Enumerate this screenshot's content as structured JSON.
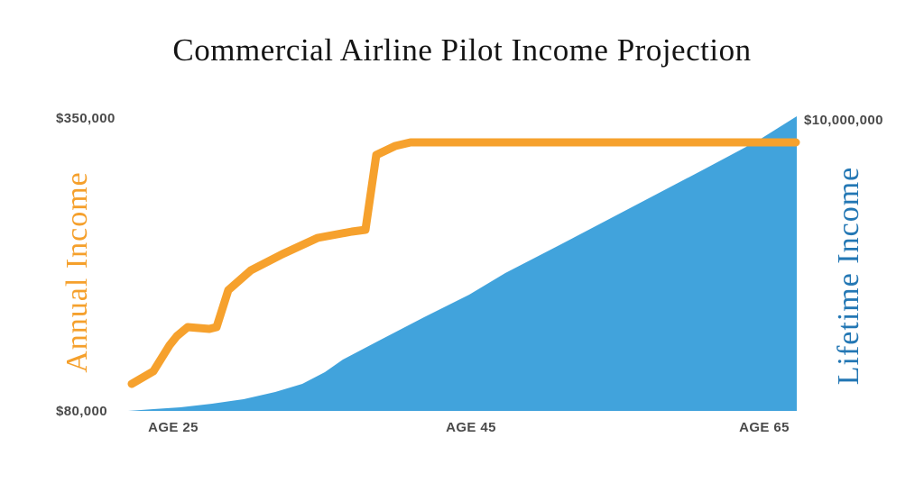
{
  "title": "Commercial Airline Pilot Income Projection",
  "left_axis": {
    "label": "Annual Income",
    "max_label": "$350,000",
    "min_label": "$80,000",
    "color": "#F5A02C"
  },
  "right_axis": {
    "label": "Lifetime Income",
    "max_label": "$10,000,000",
    "color": "#2377B4"
  },
  "x_axis": {
    "ticks": [
      {
        "label": "AGE 25"
      },
      {
        "label": "AGE 45"
      },
      {
        "label": "AGE 65"
      }
    ]
  },
  "colors": {
    "annual_line": "#F6A12D",
    "lifetime_fill": "#41A3DC",
    "tick_text": "#4A4A4A",
    "title_text": "#141414"
  },
  "chart_data": {
    "type": "area",
    "title": "Commercial Airline Pilot Income Projection",
    "xlabel": "Age",
    "x_range_age": [
      22,
      67
    ],
    "left_axis_label": "Annual Income",
    "left_axis_range": [
      80000,
      350000
    ],
    "right_axis_label": "Lifetime Income",
    "right_axis_range": [
      0,
      10000000
    ],
    "grid": false,
    "legend_position": "none",
    "series": [
      {
        "name": "Annual Income",
        "style": "line",
        "axis": "left",
        "color": "#F6A12D",
        "points": [
          {
            "age": 22,
            "value": 105000
          },
          {
            "age": 24,
            "value": 117000
          },
          {
            "age": 25,
            "value": 141000
          },
          {
            "age": 26,
            "value": 157000
          },
          {
            "age": 27.5,
            "value": 156000
          },
          {
            "age": 28,
            "value": 157000
          },
          {
            "age": 29,
            "value": 191000
          },
          {
            "age": 30,
            "value": 210000
          },
          {
            "age": 32,
            "value": 225000
          },
          {
            "age": 35,
            "value": 240000
          },
          {
            "age": 38,
            "value": 247000
          },
          {
            "age": 39,
            "value": 316000
          },
          {
            "age": 41,
            "value": 328000
          },
          {
            "age": 67,
            "value": 328000
          }
        ]
      },
      {
        "name": "Lifetime Income",
        "style": "area",
        "axis": "right",
        "color": "#41A3DC",
        "points": [
          {
            "age": 22,
            "value": 0
          },
          {
            "age": 25,
            "value": 110000
          },
          {
            "age": 30,
            "value": 430000
          },
          {
            "age": 35,
            "value": 1250000
          },
          {
            "age": 40,
            "value": 2650000
          },
          {
            "age": 45,
            "value": 4000000
          },
          {
            "age": 50,
            "value": 5400000
          },
          {
            "age": 55,
            "value": 6700000
          },
          {
            "age": 60,
            "value": 8000000
          },
          {
            "age": 65,
            "value": 9300000
          },
          {
            "age": 67,
            "value": 10000000
          }
        ]
      }
    ],
    "pixel_geometry": {
      "annual_line_points": "146,426 170,412 188,383 196,373 208,363 220,364 232,365 240,363 253,322 278,300 313,282 352,264 390,257 405,255 417,172 438,162 455,158 882,158",
      "lifetime_area_points": "142,456 170,454 200,452 235,448 270,443 305,435 335,426 360,413 380,399 420,378 470,352 520,327 560,303 620,272 700,230 780,188 840,156 883,129 883,456"
    }
  }
}
